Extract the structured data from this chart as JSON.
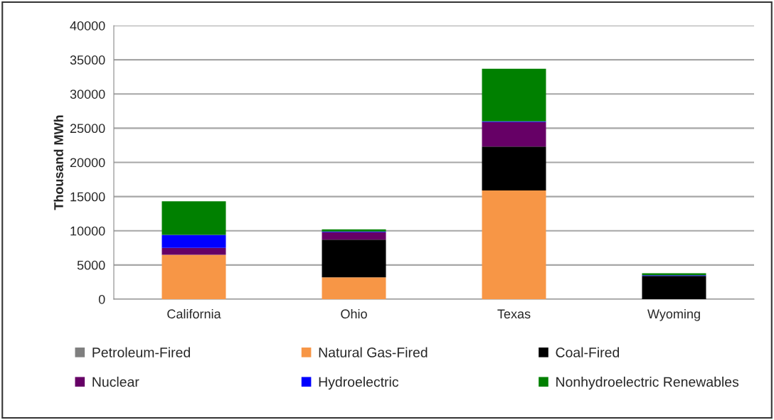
{
  "chart_data": {
    "type": "bar",
    "stacked": true,
    "ylabel": "Thousand MWh",
    "categories": [
      "California",
      "Ohio",
      "Texas",
      "Wyoming"
    ],
    "series": [
      {
        "name": "Petroleum-Fired",
        "color": "#7f7f7f",
        "values": [
          0,
          0,
          0,
          0
        ]
      },
      {
        "name": "Natural Gas-Fired",
        "color": "#f79646",
        "values": [
          6500,
          3200,
          15900,
          0
        ]
      },
      {
        "name": "Coal-Fired",
        "color": "#000000",
        "values": [
          0,
          5500,
          6400,
          3400
        ]
      },
      {
        "name": "Nuclear",
        "color": "#660066",
        "values": [
          1000,
          1100,
          3600,
          0
        ]
      },
      {
        "name": "Hydroelectric",
        "color": "#0000ff",
        "values": [
          1900,
          100,
          100,
          100
        ]
      },
      {
        "name": "Nonhydroelectric Renewables",
        "color": "#008000",
        "values": [
          4900,
          300,
          7700,
          300
        ]
      }
    ],
    "ylim": [
      0,
      40000
    ],
    "yticks": [
      0,
      5000,
      10000,
      15000,
      20000,
      25000,
      30000,
      35000,
      40000
    ],
    "grid": "y",
    "legend": "bottom"
  }
}
